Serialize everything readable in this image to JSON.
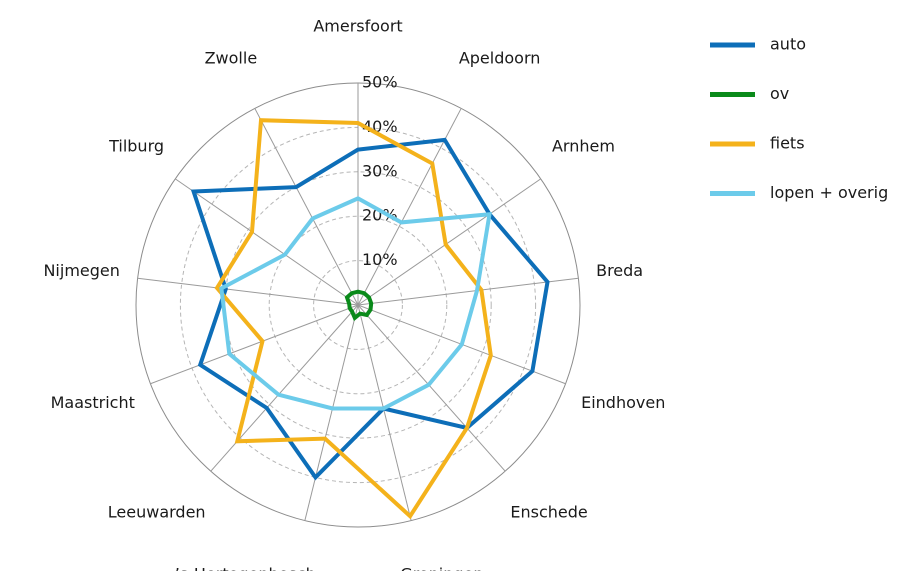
{
  "chart_data": {
    "type": "radar",
    "categories": [
      "Amersfoort",
      "Apeldoorn",
      "Arnhem",
      "Breda",
      "Eindhoven",
      "Enschede",
      "Groningen",
      "’s-Hertogenbosch",
      "Leeuwarden",
      "Maastricht",
      "Nijmegen",
      "Tilburg",
      "Zwolle"
    ],
    "series": [
      {
        "name": "auto",
        "color": "#0d6eb8",
        "values": [
          35,
          42,
          36,
          43,
          42,
          37,
          24,
          40,
          31,
          38,
          30,
          45,
          30
        ]
      },
      {
        "name": "ov",
        "color": "#0a8a1a",
        "values": [
          3,
          3,
          3,
          3,
          3,
          3,
          2,
          3,
          2,
          2,
          2,
          3,
          3
        ]
      },
      {
        "name": "fiets",
        "color": "#f4b21b",
        "values": [
          41,
          36,
          24,
          28,
          32,
          37,
          49,
          31,
          41,
          23,
          32,
          29,
          47
        ]
      },
      {
        "name": "lopen + overig",
        "color": "#6ccbea",
        "values": [
          24,
          21,
          36,
          27,
          25,
          24,
          24,
          24,
          27,
          31,
          31,
          20,
          22
        ]
      }
    ],
    "rlim": [
      0,
      50
    ],
    "rticks": [
      {
        "value": 10,
        "label": "10%"
      },
      {
        "value": 20,
        "label": "20%"
      },
      {
        "value": 30,
        "label": "30%"
      },
      {
        "value": 40,
        "label": "40%"
      },
      {
        "value": 50,
        "label": "50%"
      }
    ],
    "grid": true,
    "legend": "right"
  }
}
